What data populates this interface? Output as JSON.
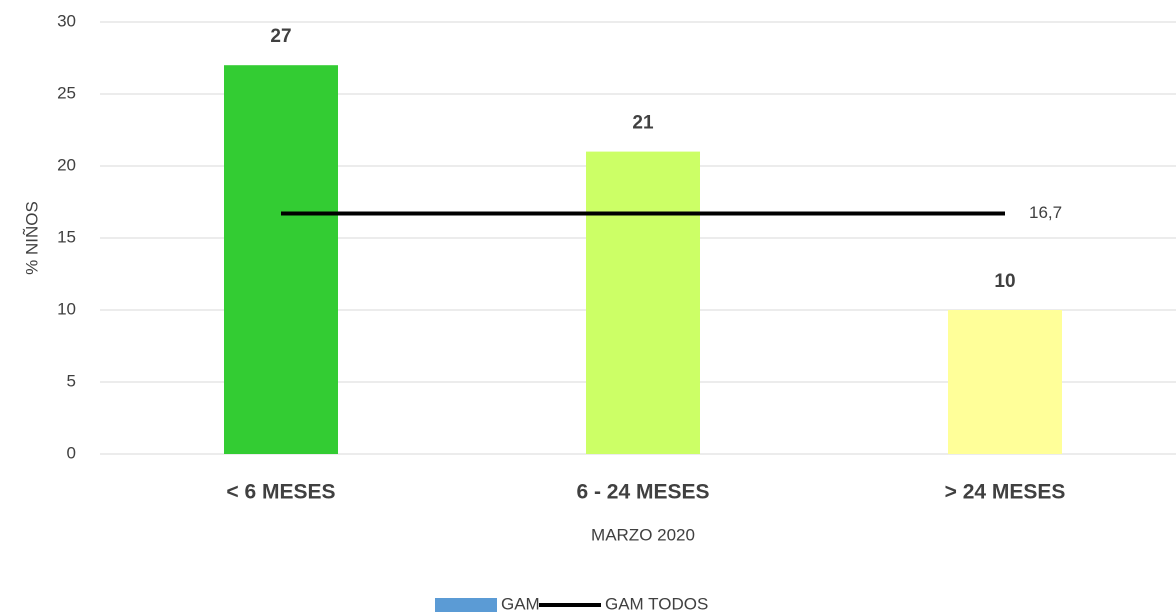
{
  "chart_data": {
    "type": "bar",
    "x_label": "MARZO 2020",
    "y_label": "% NIÑOS",
    "categories": [
      "< 6 MESES",
      "6 - 24 MESES",
      "> 24 MESES"
    ],
    "series": [
      {
        "name": "GAM",
        "type": "bar",
        "color": "#5b9bd5",
        "colors": [
          "#33cc33",
          "#ccff66",
          "#ffff99"
        ],
        "values": [
          27,
          21,
          10
        ]
      },
      {
        "name": "GAM TODOS",
        "type": "line",
        "color": "#000000",
        "values": [
          16.7,
          16.7,
          16.7
        ],
        "value_labels": [
          null,
          null,
          "16,7"
        ]
      }
    ],
    "ylim": [
      0,
      30
    ],
    "yticks": [
      0,
      5,
      10,
      15,
      20,
      25,
      30
    ],
    "grid": true,
    "legend": "bottom"
  }
}
